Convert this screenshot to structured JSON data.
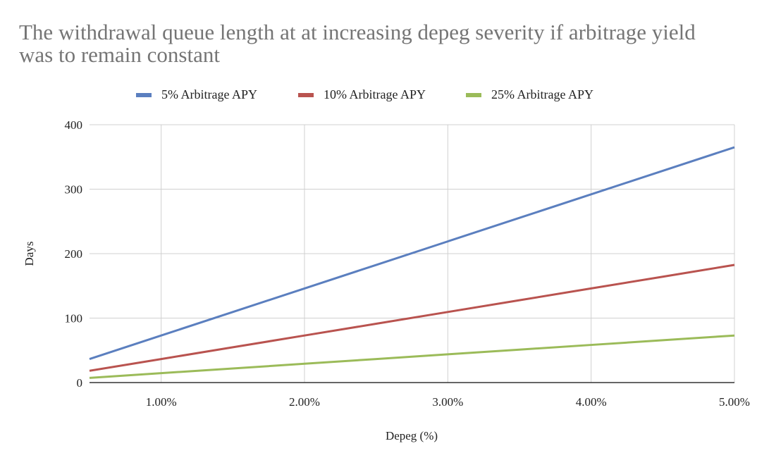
{
  "chart_data": {
    "type": "line",
    "title": "The withdrawal queue length at at increasing depeg severity if arbitrage yield was to remain constant",
    "xlabel": "Depeg (%)",
    "ylabel": "Days",
    "x": [
      0.5,
      1.0,
      1.5,
      2.0,
      2.5,
      3.0,
      3.5,
      4.0,
      4.5,
      5.0
    ],
    "xlim": [
      0.5,
      5.0
    ],
    "ylim": [
      0,
      400
    ],
    "x_ticks": [
      1,
      2,
      3,
      4,
      5
    ],
    "x_tick_labels": [
      "1.00%",
      "2.00%",
      "3.00%",
      "4.00%",
      "5.00%"
    ],
    "y_ticks": [
      0,
      100,
      200,
      300,
      400
    ],
    "y_tick_labels": [
      "0",
      "100",
      "200",
      "300",
      "400"
    ],
    "grid": true,
    "legend_position": "top",
    "series": [
      {
        "name": "5% Arbitrage APY",
        "color": "#5b7fbf",
        "values": [
          36.5,
          73,
          109.5,
          146,
          182.5,
          219,
          255.5,
          292,
          328.5,
          365
        ]
      },
      {
        "name": "10% Arbitrage APY",
        "color": "#b9534f",
        "values": [
          18.25,
          36.5,
          54.75,
          73,
          91.25,
          109.5,
          127.75,
          146,
          164.25,
          182.5
        ]
      },
      {
        "name": "25% Arbitrage APY",
        "color": "#9bbb59",
        "values": [
          7.3,
          14.6,
          21.9,
          29.2,
          36.5,
          43.8,
          51.1,
          58.4,
          65.7,
          73
        ]
      }
    ]
  }
}
